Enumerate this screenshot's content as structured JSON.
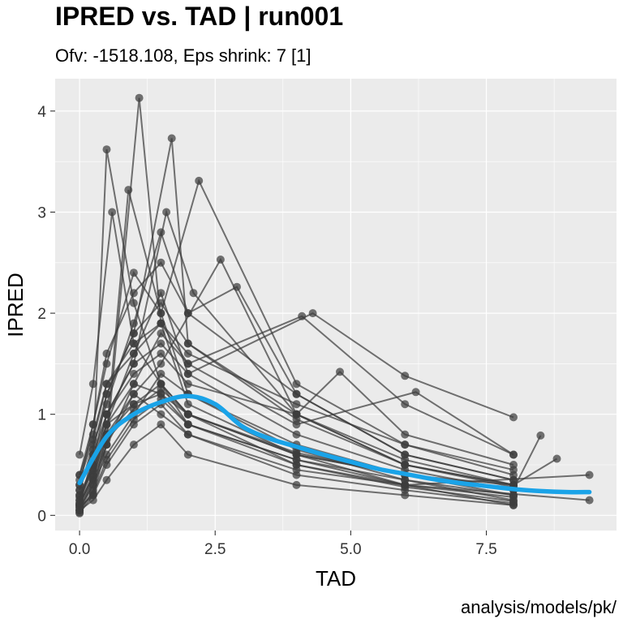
{
  "header": {
    "title": "IPRED vs. TAD | run001",
    "subtitle": "Ofv: -1518.108, Eps shrink: 7 [1]",
    "caption": "analysis/models/pk/"
  },
  "chart_data": {
    "type": "line",
    "title": "IPRED vs. TAD | run001",
    "subtitle": "Ofv: -1518.108, Eps shrink: 7 [1]",
    "xlabel": "TAD",
    "ylabel": "IPRED",
    "xlim": [
      -0.45,
      9.9
    ],
    "ylim": [
      -0.15,
      4.32
    ],
    "x_ticks": [
      0.0,
      2.5,
      5.0,
      7.5
    ],
    "x_tick_labels": [
      "0.0",
      "2.5",
      "5.0",
      "7.5"
    ],
    "y_ticks": [
      0,
      1,
      2,
      3,
      4
    ],
    "y_tick_labels": [
      "0",
      "1",
      "2",
      "3",
      "4"
    ],
    "grid": true,
    "colors": {
      "panel": "#EBEBEB",
      "grid": "#FFFFFF",
      "points": "#3D3D3D",
      "smooth": "#1AA3E8"
    },
    "series": [
      {
        "x": [
          0.0,
          0.25,
          0.5,
          1.0,
          1.5,
          2.0,
          4.0,
          6.0,
          8.0
        ],
        "y": [
          0.05,
          0.35,
          0.9,
          1.6,
          2.2,
          1.4,
          0.8,
          0.45,
          0.25
        ]
      },
      {
        "x": [
          0.0,
          0.25,
          0.5,
          1.0,
          1.5,
          2.0,
          4.0,
          6.0,
          8.0
        ],
        "y": [
          0.1,
          0.6,
          3.62,
          2.1,
          1.3,
          0.9,
          0.55,
          0.35,
          0.15
        ]
      },
      {
        "x": [
          0.0,
          0.25,
          0.5,
          1.1,
          1.5,
          2.0,
          4.0,
          6.0,
          8.0
        ],
        "y": [
          0.02,
          0.2,
          0.7,
          4.13,
          1.9,
          1.1,
          0.6,
          0.3,
          0.1
        ]
      },
      {
        "x": [
          0.0,
          0.25,
          0.5,
          1.0,
          1.7,
          2.0,
          4.0,
          6.0,
          8.0
        ],
        "y": [
          0.15,
          0.5,
          1.2,
          1.8,
          3.73,
          1.7,
          1.0,
          0.5,
          0.3
        ]
      },
      {
        "x": [
          0.0,
          0.25,
          0.5,
          1.0,
          1.5,
          2.2,
          4.0,
          6.0,
          8.0
        ],
        "y": [
          0.3,
          0.9,
          1.5,
          2.4,
          2.0,
          3.31,
          1.3,
          0.7,
          0.4
        ]
      },
      {
        "x": [
          0.0,
          0.25,
          0.5,
          1.0,
          1.5,
          2.0,
          4.0,
          6.0,
          8.0
        ],
        "y": [
          0.2,
          0.45,
          0.8,
          1.2,
          1.0,
          0.8,
          0.45,
          0.3,
          0.18
        ]
      },
      {
        "x": [
          0.0,
          0.25,
          0.5,
          1.0,
          1.5,
          2.0,
          4.0,
          6.0,
          8.0
        ],
        "y": [
          0.08,
          0.3,
          0.6,
          1.0,
          1.4,
          1.2,
          0.7,
          0.4,
          0.2
        ]
      },
      {
        "x": [
          0.0,
          0.25,
          0.5,
          1.0,
          1.5,
          2.0,
          4.1,
          6.0,
          8.0
        ],
        "y": [
          0.4,
          0.8,
          1.3,
          1.6,
          1.9,
          1.5,
          1.97,
          1.1,
          0.6
        ]
      },
      {
        "x": [
          0.0,
          0.25,
          0.5,
          1.0,
          1.5,
          2.0,
          4.3,
          6.0,
          8.0
        ],
        "y": [
          0.12,
          0.4,
          1.0,
          1.5,
          1.7,
          1.4,
          2.0,
          1.38,
          0.97
        ]
      },
      {
        "x": [
          0.0,
          0.25,
          0.5,
          1.0,
          1.5,
          2.0,
          4.0,
          6.0,
          8.0
        ],
        "y": [
          0.05,
          0.15,
          0.35,
          0.7,
          0.9,
          0.6,
          0.3,
          0.2,
          0.1
        ]
      },
      {
        "x": [
          0.0,
          0.25,
          0.5,
          1.0,
          1.5,
          2.0,
          4.0,
          6.0,
          8.0
        ],
        "y": [
          0.25,
          0.7,
          1.1,
          1.9,
          2.8,
          2.0,
          1.2,
          0.6,
          0.35
        ]
      },
      {
        "x": [
          0.0,
          0.25,
          0.5,
          1.0,
          1.5,
          2.0,
          4.0,
          6.0,
          9.4
        ],
        "y": [
          0.1,
          0.35,
          0.7,
          1.3,
          1.2,
          1.0,
          0.5,
          0.3,
          0.4
        ]
      },
      {
        "x": [
          0.0,
          0.25,
          0.5,
          1.0,
          1.5,
          2.0,
          4.0,
          6.0,
          9.4
        ],
        "y": [
          0.18,
          0.5,
          0.9,
          1.1,
          1.2,
          0.9,
          0.55,
          0.3,
          0.15
        ]
      },
      {
        "x": [
          0.0,
          0.25,
          0.6,
          1.0,
          1.5,
          2.0,
          4.0,
          6.0,
          8.0
        ],
        "y": [
          0.6,
          1.3,
          3.0,
          1.7,
          1.3,
          1.0,
          0.6,
          0.4,
          0.25
        ]
      },
      {
        "x": [
          0.0,
          0.25,
          0.5,
          0.9,
          1.5,
          2.0,
          4.0,
          6.0,
          8.0
        ],
        "y": [
          0.03,
          0.25,
          0.8,
          3.22,
          2.0,
          1.2,
          0.65,
          0.35,
          0.2
        ]
      },
      {
        "x": [
          0.0,
          0.25,
          0.5,
          1.0,
          1.6,
          2.1,
          4.0,
          6.0,
          8.0
        ],
        "y": [
          0.3,
          0.6,
          1.0,
          1.5,
          3.0,
          2.2,
          1.0,
          0.55,
          0.3
        ]
      },
      {
        "x": [
          0.0,
          0.25,
          0.5,
          1.0,
          1.5,
          2.0,
          4.0,
          4.8,
          6.0,
          8.0
        ],
        "y": [
          0.2,
          0.5,
          1.0,
          1.4,
          1.6,
          1.3,
          1.0,
          1.42,
          0.8,
          0.5
        ]
      },
      {
        "x": [
          0.0,
          0.25,
          0.5,
          1.0,
          1.5,
          2.0,
          4.0,
          6.0,
          8.0,
          8.8
        ],
        "y": [
          0.1,
          0.4,
          0.8,
          1.1,
          1.3,
          1.0,
          0.6,
          0.4,
          0.3,
          0.56
        ]
      },
      {
        "x": [
          0.0,
          0.25,
          0.5,
          1.0,
          1.5,
          2.0,
          4.0,
          6.2,
          8.0
        ],
        "y": [
          0.15,
          0.45,
          0.9,
          1.3,
          1.8,
          1.5,
          0.9,
          1.22,
          0.6
        ]
      },
      {
        "x": [
          0.0,
          0.25,
          0.5,
          1.0,
          1.5,
          2.6,
          4.0,
          6.0,
          8.0
        ],
        "y": [
          0.05,
          0.3,
          0.7,
          1.2,
          1.5,
          2.53,
          1.0,
          0.5,
          0.3
        ]
      },
      {
        "x": [
          0.0,
          0.25,
          0.5,
          1.0,
          1.5,
          2.0,
          2.9,
          4.0,
          6.0,
          8.0
        ],
        "y": [
          0.4,
          0.9,
          1.6,
          2.2,
          2.5,
          2.0,
          2.26,
          1.2,
          0.6,
          0.35
        ]
      },
      {
        "x": [
          0.0,
          0.25,
          0.5,
          1.0,
          1.5,
          2.0,
          4.0,
          6.0,
          8.0
        ],
        "y": [
          0.08,
          0.2,
          0.5,
          0.9,
          1.1,
          0.8,
          0.4,
          0.25,
          0.12
        ]
      },
      {
        "x": [
          0.0,
          0.25,
          0.5,
          1.0,
          1.5,
          2.0,
          4.0,
          6.0,
          8.0
        ],
        "y": [
          0.25,
          0.65,
          1.2,
          1.8,
          2.1,
          1.7,
          0.95,
          0.5,
          0.28
        ]
      },
      {
        "x": [
          0.0,
          0.25,
          0.5,
          1.0,
          1.5,
          2.0,
          4.0,
          6.0,
          8.0,
          8.5
        ],
        "y": [
          0.12,
          0.38,
          0.75,
          1.05,
          1.25,
          1.0,
          0.62,
          0.4,
          0.26,
          0.79
        ]
      },
      {
        "x": [
          0.0,
          0.25,
          0.5,
          1.0,
          1.5,
          2.0,
          4.0,
          6.0,
          8.0
        ],
        "y": [
          0.35,
          0.75,
          1.3,
          1.7,
          1.9,
          1.6,
          1.1,
          0.7,
          0.45
        ]
      },
      {
        "x": [
          0.0,
          0.25,
          0.5,
          1.0,
          1.5,
          2.0,
          4.0,
          6.0,
          8.0
        ],
        "y": [
          0.06,
          0.22,
          0.55,
          0.95,
          1.15,
          0.9,
          0.5,
          0.28,
          0.14
        ]
      }
    ],
    "smooth": {
      "x": [
        0.0,
        0.5,
        1.0,
        1.5,
        2.0,
        2.5,
        3.0,
        3.5,
        4.0,
        4.5,
        5.0,
        5.5,
        6.0,
        6.5,
        7.0,
        7.5,
        8.0,
        8.5,
        9.0,
        9.4
      ],
      "y": [
        0.32,
        0.78,
        1.0,
        1.12,
        1.18,
        1.1,
        0.88,
        0.76,
        0.68,
        0.6,
        0.53,
        0.46,
        0.41,
        0.36,
        0.32,
        0.29,
        0.26,
        0.24,
        0.23,
        0.23
      ]
    }
  }
}
